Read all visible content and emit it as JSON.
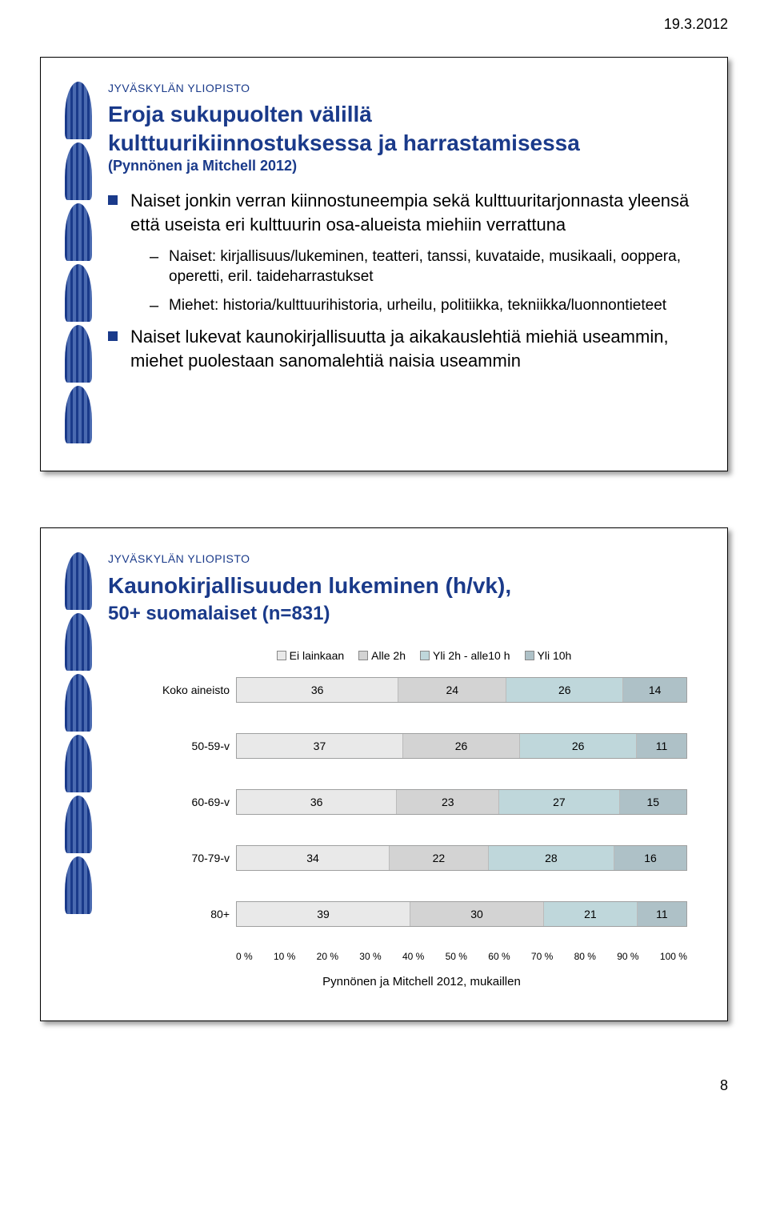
{
  "page_date": "19.3.2012",
  "page_number": "8",
  "header_label": "JYVÄSKYLÄN YLIOPISTO",
  "slide1": {
    "title_line1": "Eroja sukupuolten välillä",
    "title_line2": "kulttuurikiinnostuksessa ja harrastamisessa",
    "subtitle": "(Pynnönen ja Mitchell 2012)",
    "bullets": [
      {
        "text": "Naiset jonkin verran kiinnostuneempia sekä kulttuuritarjonnasta yleensä että useista eri kulttuurin osa-alueista miehiin verrattuna",
        "sub": [
          "Naiset: kirjallisuus/lukeminen, teatteri, tanssi, kuvataide, musikaali, ooppera, operetti, eril. taideharrastukset",
          "Miehet: historia/kulttuurihistoria, urheilu, politiikka, tekniikka/luonnontieteet"
        ]
      },
      {
        "text": "Naiset lukevat kaunokirjallisuutta ja aikakauslehtiä miehiä useammin, miehet puolestaan sanomalehtiä naisia useammin",
        "sub": []
      }
    ]
  },
  "slide2": {
    "title": "Kaunokirjallisuuden lukeminen (h/vk),",
    "subtitle": "50+ suomalaiset (n=831)",
    "legend_labels": [
      "Ei lainkaan",
      "Alle 2h",
      "Yli 2h - alle10 h",
      "Yli 10h"
    ],
    "colors": [
      "#e9e9e9",
      "#d3d3d3",
      "#bfd7db",
      "#aec1c7"
    ],
    "rows": [
      {
        "label": "Koko aineisto",
        "values": [
          36,
          24,
          26,
          14
        ]
      },
      {
        "label": "50-59-v",
        "values": [
          37,
          26,
          26,
          11
        ]
      },
      {
        "label": "60-69-v",
        "values": [
          36,
          23,
          27,
          15
        ]
      },
      {
        "label": "70-79-v",
        "values": [
          34,
          22,
          28,
          16
        ]
      },
      {
        "label": "80+",
        "values": [
          39,
          30,
          21,
          11
        ]
      }
    ],
    "axis_ticks": [
      "0 %",
      "10 %",
      "20 %",
      "30 %",
      "40 %",
      "50 %",
      "60 %",
      "70 %",
      "80 %",
      "90 %",
      "100 %"
    ],
    "caption": "Pynnönen ja Mitchell 2012, mukaillen"
  }
}
